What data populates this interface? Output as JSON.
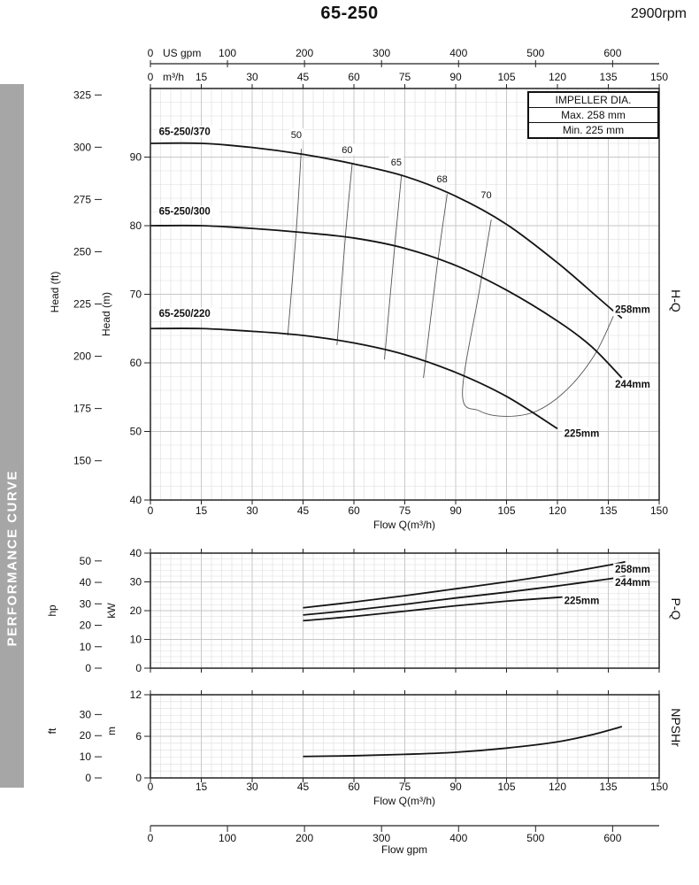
{
  "page": {
    "title": "65-250",
    "rpm": "2900rpm",
    "sidebar_label": "PERFORMANCE CURVE",
    "impeller_box": {
      "header": "IMPELLER DIA.",
      "max": "Max.   258 mm",
      "min": "Min.   225 mm"
    }
  },
  "gpm_axis": {
    "top_label": "US gpm",
    "bottom_label": "Flow gpm",
    "ticks": [
      0,
      100,
      200,
      300,
      400,
      500,
      600
    ],
    "gpm_per_m3h": 4.4029
  },
  "chart_data": [
    {
      "id": "hq",
      "type": "line",
      "title": "65-250 @ 2900rpm",
      "section_label": "H-Q",
      "x": {
        "min": 0,
        "max": 150,
        "minor_step": 3,
        "major_ticks": [
          0,
          15,
          30,
          45,
          60,
          75,
          90,
          105,
          120,
          135,
          150
        ],
        "label": "Flow Q(m³/h)",
        "unit_label": "m³/h"
      },
      "y": {
        "min": 40,
        "max": 100,
        "minor_step": 2,
        "major_step": 10,
        "ticks": [
          40,
          50,
          60,
          70,
          80,
          90
        ],
        "axis_label": "Head (m)"
      },
      "y_secondary": {
        "axis_label": "Head (ft)",
        "ticks": [
          150,
          175,
          200,
          225,
          250,
          275,
          300,
          325
        ],
        "factor": 0.3048
      },
      "series": [
        {
          "name": "65-250/370",
          "label": "65-250/370",
          "label_pos": [
            2.5,
            93.2
          ],
          "end_label": "258mm",
          "end_label_pos": [
            137,
            67.3
          ],
          "points": [
            [
              0,
              92
            ],
            [
              15,
              92
            ],
            [
              30,
              91.4
            ],
            [
              45,
              90.4
            ],
            [
              60,
              89
            ],
            [
              75,
              87.2
            ],
            [
              90,
              84.3
            ],
            [
              105,
              80.2
            ],
            [
              120,
              74.6
            ],
            [
              132,
              69.5
            ],
            [
              139,
              66.5
            ]
          ]
        },
        {
          "name": "65-250/300",
          "label": "65-250/300",
          "label_pos": [
            2.5,
            81.6
          ],
          "end_label": "244mm",
          "end_label_pos": [
            137,
            56.4
          ],
          "points": [
            [
              0,
              80
            ],
            [
              15,
              80
            ],
            [
              30,
              79.6
            ],
            [
              45,
              79
            ],
            [
              60,
              78.2
            ],
            [
              75,
              76.7
            ],
            [
              90,
              74.2
            ],
            [
              105,
              70.6
            ],
            [
              120,
              66.1
            ],
            [
              130,
              62.4
            ],
            [
              139,
              57.8
            ]
          ]
        },
        {
          "name": "65-250/220",
          "label": "65-250/220",
          "label_pos": [
            2.5,
            66.7
          ],
          "end_label": "225mm",
          "end_label_pos": [
            122,
            49.2
          ],
          "points": [
            [
              0,
              65
            ],
            [
              15,
              65
            ],
            [
              30,
              64.6
            ],
            [
              45,
              64
            ],
            [
              60,
              62.9
            ],
            [
              75,
              61.2
            ],
            [
              90,
              58.6
            ],
            [
              105,
              55.1
            ],
            [
              120,
              50.4
            ]
          ]
        }
      ],
      "efficiency_lines": [
        {
          "label": "50",
          "label_pos": [
            43,
            92.8
          ],
          "points": [
            [
              44.5,
              91.2
            ],
            [
              43,
              79.3
            ],
            [
              40.5,
              64
            ]
          ]
        },
        {
          "label": "60",
          "label_pos": [
            58,
            90.6
          ],
          "points": [
            [
              59.5,
              89.1
            ],
            [
              57.5,
              78.5
            ],
            [
              55,
              62.6
            ]
          ]
        },
        {
          "label": "65",
          "label_pos": [
            72.5,
            88.8
          ],
          "points": [
            [
              74,
              87.3
            ],
            [
              72,
              76.9
            ],
            [
              69,
              60.5
            ]
          ]
        },
        {
          "label": "68",
          "label_pos": [
            86,
            86.3
          ],
          "points": [
            [
              87.5,
              84.6
            ],
            [
              84.5,
              74
            ],
            [
              80.5,
              57.8
            ]
          ]
        },
        {
          "label": "70",
          "label_pos": [
            99,
            84
          ],
          "points": [
            [
              100.5,
              80.9
            ],
            [
              97,
              70.6
            ],
            [
              92,
              55.6
            ],
            [
              97,
              53
            ],
            [
              105,
              52.2
            ],
            [
              114,
              53
            ],
            [
              123,
              56.2
            ],
            [
              131,
              61.2
            ],
            [
              136.5,
              66.8
            ]
          ]
        }
      ]
    },
    {
      "id": "pq",
      "type": "line",
      "section_label": "P-Q",
      "x": {
        "min": 0,
        "max": 150,
        "minor_step": 3,
        "major_ticks": [
          0,
          15,
          30,
          45,
          60,
          75,
          90,
          105,
          120,
          135,
          150
        ]
      },
      "y": {
        "min": 0,
        "max": 40,
        "minor_step": 2,
        "major_step": 10,
        "ticks": [
          0,
          10,
          20,
          30,
          40
        ],
        "axis_label": "kW"
      },
      "y_secondary": {
        "axis_label": "hp",
        "ticks": [
          0,
          10,
          20,
          30,
          40,
          50
        ],
        "factor": 0.7457
      },
      "series": [
        {
          "name": "258mm",
          "end_label": "258mm",
          "end_label_pos": [
            137,
            33.2
          ],
          "points": [
            [
              45,
              21
            ],
            [
              60,
              23
            ],
            [
              75,
              25.2
            ],
            [
              90,
              27.6
            ],
            [
              105,
              30
            ],
            [
              120,
              32.7
            ],
            [
              135,
              35.8
            ],
            [
              140,
              37
            ]
          ]
        },
        {
          "name": "244mm",
          "end_label": "244mm",
          "end_label_pos": [
            137,
            28.6
          ],
          "points": [
            [
              45,
              18.5
            ],
            [
              60,
              20.2
            ],
            [
              75,
              22.2
            ],
            [
              90,
              24.4
            ],
            [
              105,
              26.4
            ],
            [
              120,
              28.6
            ],
            [
              135,
              31
            ],
            [
              140,
              32
            ]
          ]
        },
        {
          "name": "225mm",
          "end_label": "225mm",
          "end_label_pos": [
            122,
            22.3
          ],
          "points": [
            [
              45,
              16.5
            ],
            [
              60,
              18
            ],
            [
              75,
              19.8
            ],
            [
              90,
              21.7
            ],
            [
              105,
              23.3
            ],
            [
              120,
              24.6
            ],
            [
              126,
              25
            ]
          ]
        }
      ]
    },
    {
      "id": "npshr",
      "type": "line",
      "section_label": "NPSHr",
      "x": {
        "min": 0,
        "max": 150,
        "minor_step": 3,
        "major_ticks": [
          0,
          15,
          30,
          45,
          60,
          75,
          90,
          105,
          120,
          135,
          150
        ],
        "label": "Flow Q(m³/h)"
      },
      "y": {
        "min": 0,
        "max": 12,
        "minor_step": 1,
        "major_step": 6,
        "ticks": [
          0,
          6,
          12
        ],
        "axis_label": "m"
      },
      "y_secondary": {
        "axis_label": "ft",
        "ticks": [
          0,
          10,
          20,
          30
        ],
        "factor": 0.3048
      },
      "series": [
        {
          "name": "NPSHr",
          "points": [
            [
              45,
              3.1
            ],
            [
              60,
              3.2
            ],
            [
              75,
              3.4
            ],
            [
              90,
              3.7
            ],
            [
              105,
              4.3
            ],
            [
              120,
              5.2
            ],
            [
              130,
              6.2
            ],
            [
              139,
              7.4
            ]
          ]
        }
      ]
    }
  ]
}
